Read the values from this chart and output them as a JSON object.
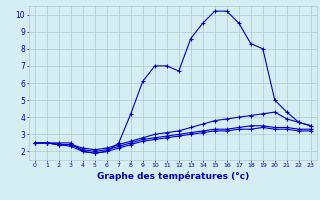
{
  "title": "",
  "xlabel": "Graphe des températures (°c)",
  "xlim": [
    -0.5,
    23.5
  ],
  "ylim": [
    1.5,
    10.5
  ],
  "xticks": [
    0,
    1,
    2,
    3,
    4,
    5,
    6,
    7,
    8,
    9,
    10,
    11,
    12,
    13,
    14,
    15,
    16,
    17,
    18,
    19,
    20,
    21,
    22,
    23
  ],
  "yticks": [
    2,
    3,
    4,
    5,
    6,
    7,
    8,
    9,
    10
  ],
  "background_color": "#d4eef4",
  "grid_color": "#aacccc",
  "line_color": "#0000cc",
  "series": [
    {
      "x": [
        0,
        1,
        2,
        3,
        4,
        5,
        6,
        7,
        8,
        9,
        10,
        11,
        12,
        13,
        14,
        15,
        16,
        17,
        18,
        19,
        20,
        21,
        22,
        23
      ],
      "y": [
        2.5,
        2.5,
        2.5,
        2.5,
        2.0,
        1.9,
        2.0,
        2.5,
        4.2,
        6.1,
        7.0,
        7.0,
        6.7,
        8.6,
        9.5,
        10.2,
        10.2,
        9.5,
        8.3,
        8.0,
        5.0,
        4.3,
        3.7,
        3.5
      ]
    },
    {
      "x": [
        0,
        1,
        2,
        3,
        4,
        5,
        6,
        7,
        8,
        9,
        10,
        11,
        12,
        13,
        14,
        15,
        16,
        17,
        18,
        19,
        20,
        21,
        22,
        23
      ],
      "y": [
        2.5,
        2.5,
        2.4,
        2.4,
        2.2,
        2.1,
        2.2,
        2.4,
        2.6,
        2.8,
        3.0,
        3.1,
        3.2,
        3.4,
        3.6,
        3.8,
        3.9,
        4.0,
        4.1,
        4.2,
        4.3,
        3.9,
        3.7,
        3.5
      ]
    },
    {
      "x": [
        0,
        1,
        2,
        3,
        4,
        5,
        6,
        7,
        8,
        9,
        10,
        11,
        12,
        13,
        14,
        15,
        16,
        17,
        18,
        19,
        20,
        21,
        22,
        23
      ],
      "y": [
        2.5,
        2.5,
        2.4,
        2.4,
        2.1,
        2.0,
        2.1,
        2.3,
        2.5,
        2.7,
        2.8,
        2.9,
        3.0,
        3.1,
        3.2,
        3.3,
        3.3,
        3.4,
        3.5,
        3.5,
        3.4,
        3.4,
        3.3,
        3.3
      ]
    },
    {
      "x": [
        0,
        1,
        2,
        3,
        4,
        5,
        6,
        7,
        8,
        9,
        10,
        11,
        12,
        13,
        14,
        15,
        16,
        17,
        18,
        19,
        20,
        21,
        22,
        23
      ],
      "y": [
        2.5,
        2.5,
        2.4,
        2.3,
        2.0,
        1.9,
        2.0,
        2.2,
        2.4,
        2.6,
        2.7,
        2.8,
        2.9,
        3.0,
        3.1,
        3.2,
        3.2,
        3.3,
        3.3,
        3.4,
        3.3,
        3.3,
        3.2,
        3.2
      ]
    }
  ]
}
